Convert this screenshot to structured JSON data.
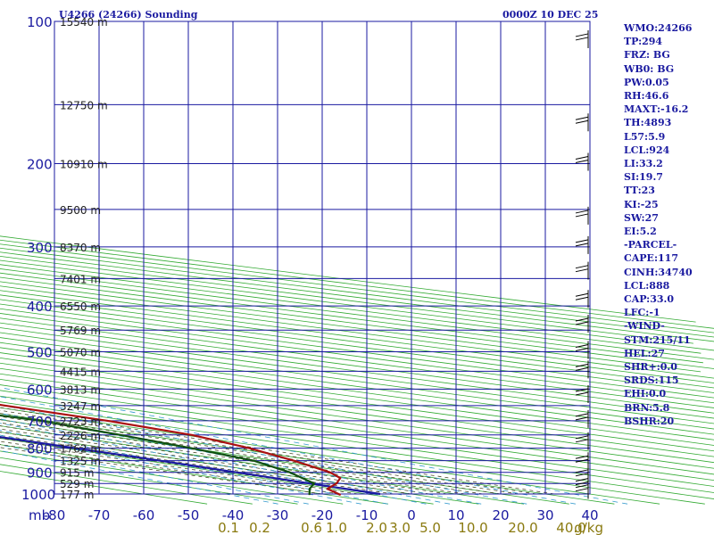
{
  "colors": {
    "isobar": "#1a1aa0",
    "isotherm": "#1a1aa0",
    "dry_adiabat": "#33aa33",
    "moist_adiabat": "#4a4a2a",
    "mixing_ratio": "#3399cc",
    "temperature": "#aa1010",
    "dewpoint": "#105010",
    "parcel": "#1a1aa0",
    "wind_barb": "#000000"
  },
  "chart_data": {
    "type": "skew-t",
    "title": "U4266 (24266) Sounding",
    "time_label": "0000Z 10 DEC 25",
    "xlabel": "mb",
    "pressure_levels": [
      100,
      200,
      300,
      400,
      500,
      600,
      700,
      800,
      900,
      1000
    ],
    "pressure_tick_labels": [
      "100",
      "200",
      "300",
      "400",
      "500",
      "600",
      "700",
      "800",
      "900",
      "1000"
    ],
    "temperature_ticks": [
      -80,
      -70,
      -60,
      -50,
      -40,
      -30,
      -20,
      -10,
      0,
      10,
      20,
      30,
      40
    ],
    "temperature_tick_labels": [
      "-80",
      "-70",
      "-60",
      "-50",
      "-40",
      "-30",
      "-20",
      "-10",
      "0",
      "10",
      "20",
      "30",
      "40"
    ],
    "mixing_ratio_labels": [
      "0.1",
      "0.2",
      "0.6",
      "1.0",
      "2.0",
      "3.0",
      "5.0",
      "10.0",
      "20.0",
      "40.0"
    ],
    "mixing_ratio_unit": "g/kg",
    "height_labels": [
      {
        "p": 100,
        "label": "15540 m"
      },
      {
        "p": 150,
        "label": "12750 m"
      },
      {
        "p": 200,
        "label": "10910 m"
      },
      {
        "p": 250,
        "label": "9500 m"
      },
      {
        "p": 300,
        "label": "8370 m"
      },
      {
        "p": 350,
        "label": "7401 m"
      },
      {
        "p": 400,
        "label": "6550 m"
      },
      {
        "p": 450,
        "label": "5769 m"
      },
      {
        "p": 500,
        "label": "5070 m"
      },
      {
        "p": 550,
        "label": "4415 m"
      },
      {
        "p": 600,
        "label": "3813 m"
      },
      {
        "p": 650,
        "label": "3247 m"
      },
      {
        "p": 700,
        "label": "2723 m"
      },
      {
        "p": 750,
        "label": "2226 m"
      },
      {
        "p": 800,
        "label": "1762 m"
      },
      {
        "p": 850,
        "label": "1325 m"
      },
      {
        "p": 900,
        "label": "915 m"
      },
      {
        "p": 950,
        "label": "529 m"
      },
      {
        "p": 1000,
        "label": "177 m"
      }
    ],
    "series": [
      {
        "name": "Temperature",
        "points": [
          [
            1005,
            -17
          ],
          [
            975,
            -13
          ],
          [
            950,
            -5
          ],
          [
            925,
            2
          ],
          [
            900,
            6
          ],
          [
            850,
            11
          ],
          [
            800,
            15
          ],
          [
            750,
            17
          ],
          [
            700,
            14
          ],
          [
            650,
            8
          ],
          [
            600,
            2
          ],
          [
            550,
            -7
          ],
          [
            500,
            -17
          ],
          [
            450,
            -27
          ],
          [
            400,
            -38
          ],
          [
            350,
            -45
          ],
          [
            300,
            -51
          ],
          [
            280,
            -47
          ],
          [
            250,
            -45
          ],
          [
            220,
            -42
          ],
          [
            200,
            -39
          ],
          [
            180,
            -34
          ],
          [
            150,
            -29
          ],
          [
            120,
            -28
          ],
          [
            100,
            -30
          ]
        ]
      },
      {
        "name": "Dewpoint",
        "points": [
          [
            1005,
            -24
          ],
          [
            975,
            -17
          ],
          [
            950,
            -10
          ],
          [
            900,
            -3
          ],
          [
            850,
            2
          ],
          [
            800,
            2
          ],
          [
            750,
            1
          ],
          [
            700,
            -1
          ],
          [
            650,
            -10
          ],
          [
            600,
            -18
          ],
          [
            550,
            -26
          ],
          [
            500,
            -34
          ],
          [
            450,
            -42
          ],
          [
            400,
            -52
          ],
          [
            350,
            -60
          ],
          [
            300,
            -68
          ],
          [
            280,
            -67
          ],
          [
            250,
            -68
          ],
          [
            220,
            -71
          ],
          [
            200,
            -70
          ],
          [
            180,
            -69
          ],
          [
            150,
            -71
          ],
          [
            120,
            -71
          ],
          [
            100,
            -75
          ]
        ]
      },
      {
        "name": "Parcel",
        "points": [
          [
            1000,
            -7
          ],
          [
            950,
            -11
          ],
          [
            900,
            -15
          ],
          [
            850,
            -19
          ],
          [
            800,
            -24
          ],
          [
            750,
            -29
          ],
          [
            700,
            -34
          ],
          [
            650,
            -40
          ],
          [
            600,
            -46
          ],
          [
            550,
            -52
          ],
          [
            500,
            -58
          ],
          [
            450,
            -65
          ]
        ]
      }
    ],
    "wind_barb_pressures": [
      110,
      165,
      200,
      260,
      300,
      340,
      390,
      440,
      500,
      550,
      620,
      700,
      780,
      860,
      920,
      960,
      990
    ]
  },
  "stats": [
    "WMO:24266",
    "TP:294",
    "FRZ: BG",
    "WB0: BG",
    "PW:0.05",
    "RH:46.6",
    "MAXT:-16.2",
    "TH:4893",
    "L57:5.9",
    "LCL:924",
    "LI:33.2",
    "SI:19.7",
    "TT:23",
    "KI:-25",
    "SW:27",
    "EI:5.2",
    "-PARCEL-",
    "CAPE:117",
    "CINH:34740",
    "LCL:888",
    "CAP:33.0",
    "LFC:-1",
    "-WIND-",
    "STM:215/11",
    "HEL:27",
    "SHR+:0.0",
    "SRDS:115",
    "EHI:0.0",
    "BRN:5.8",
    "BSHR:20"
  ]
}
